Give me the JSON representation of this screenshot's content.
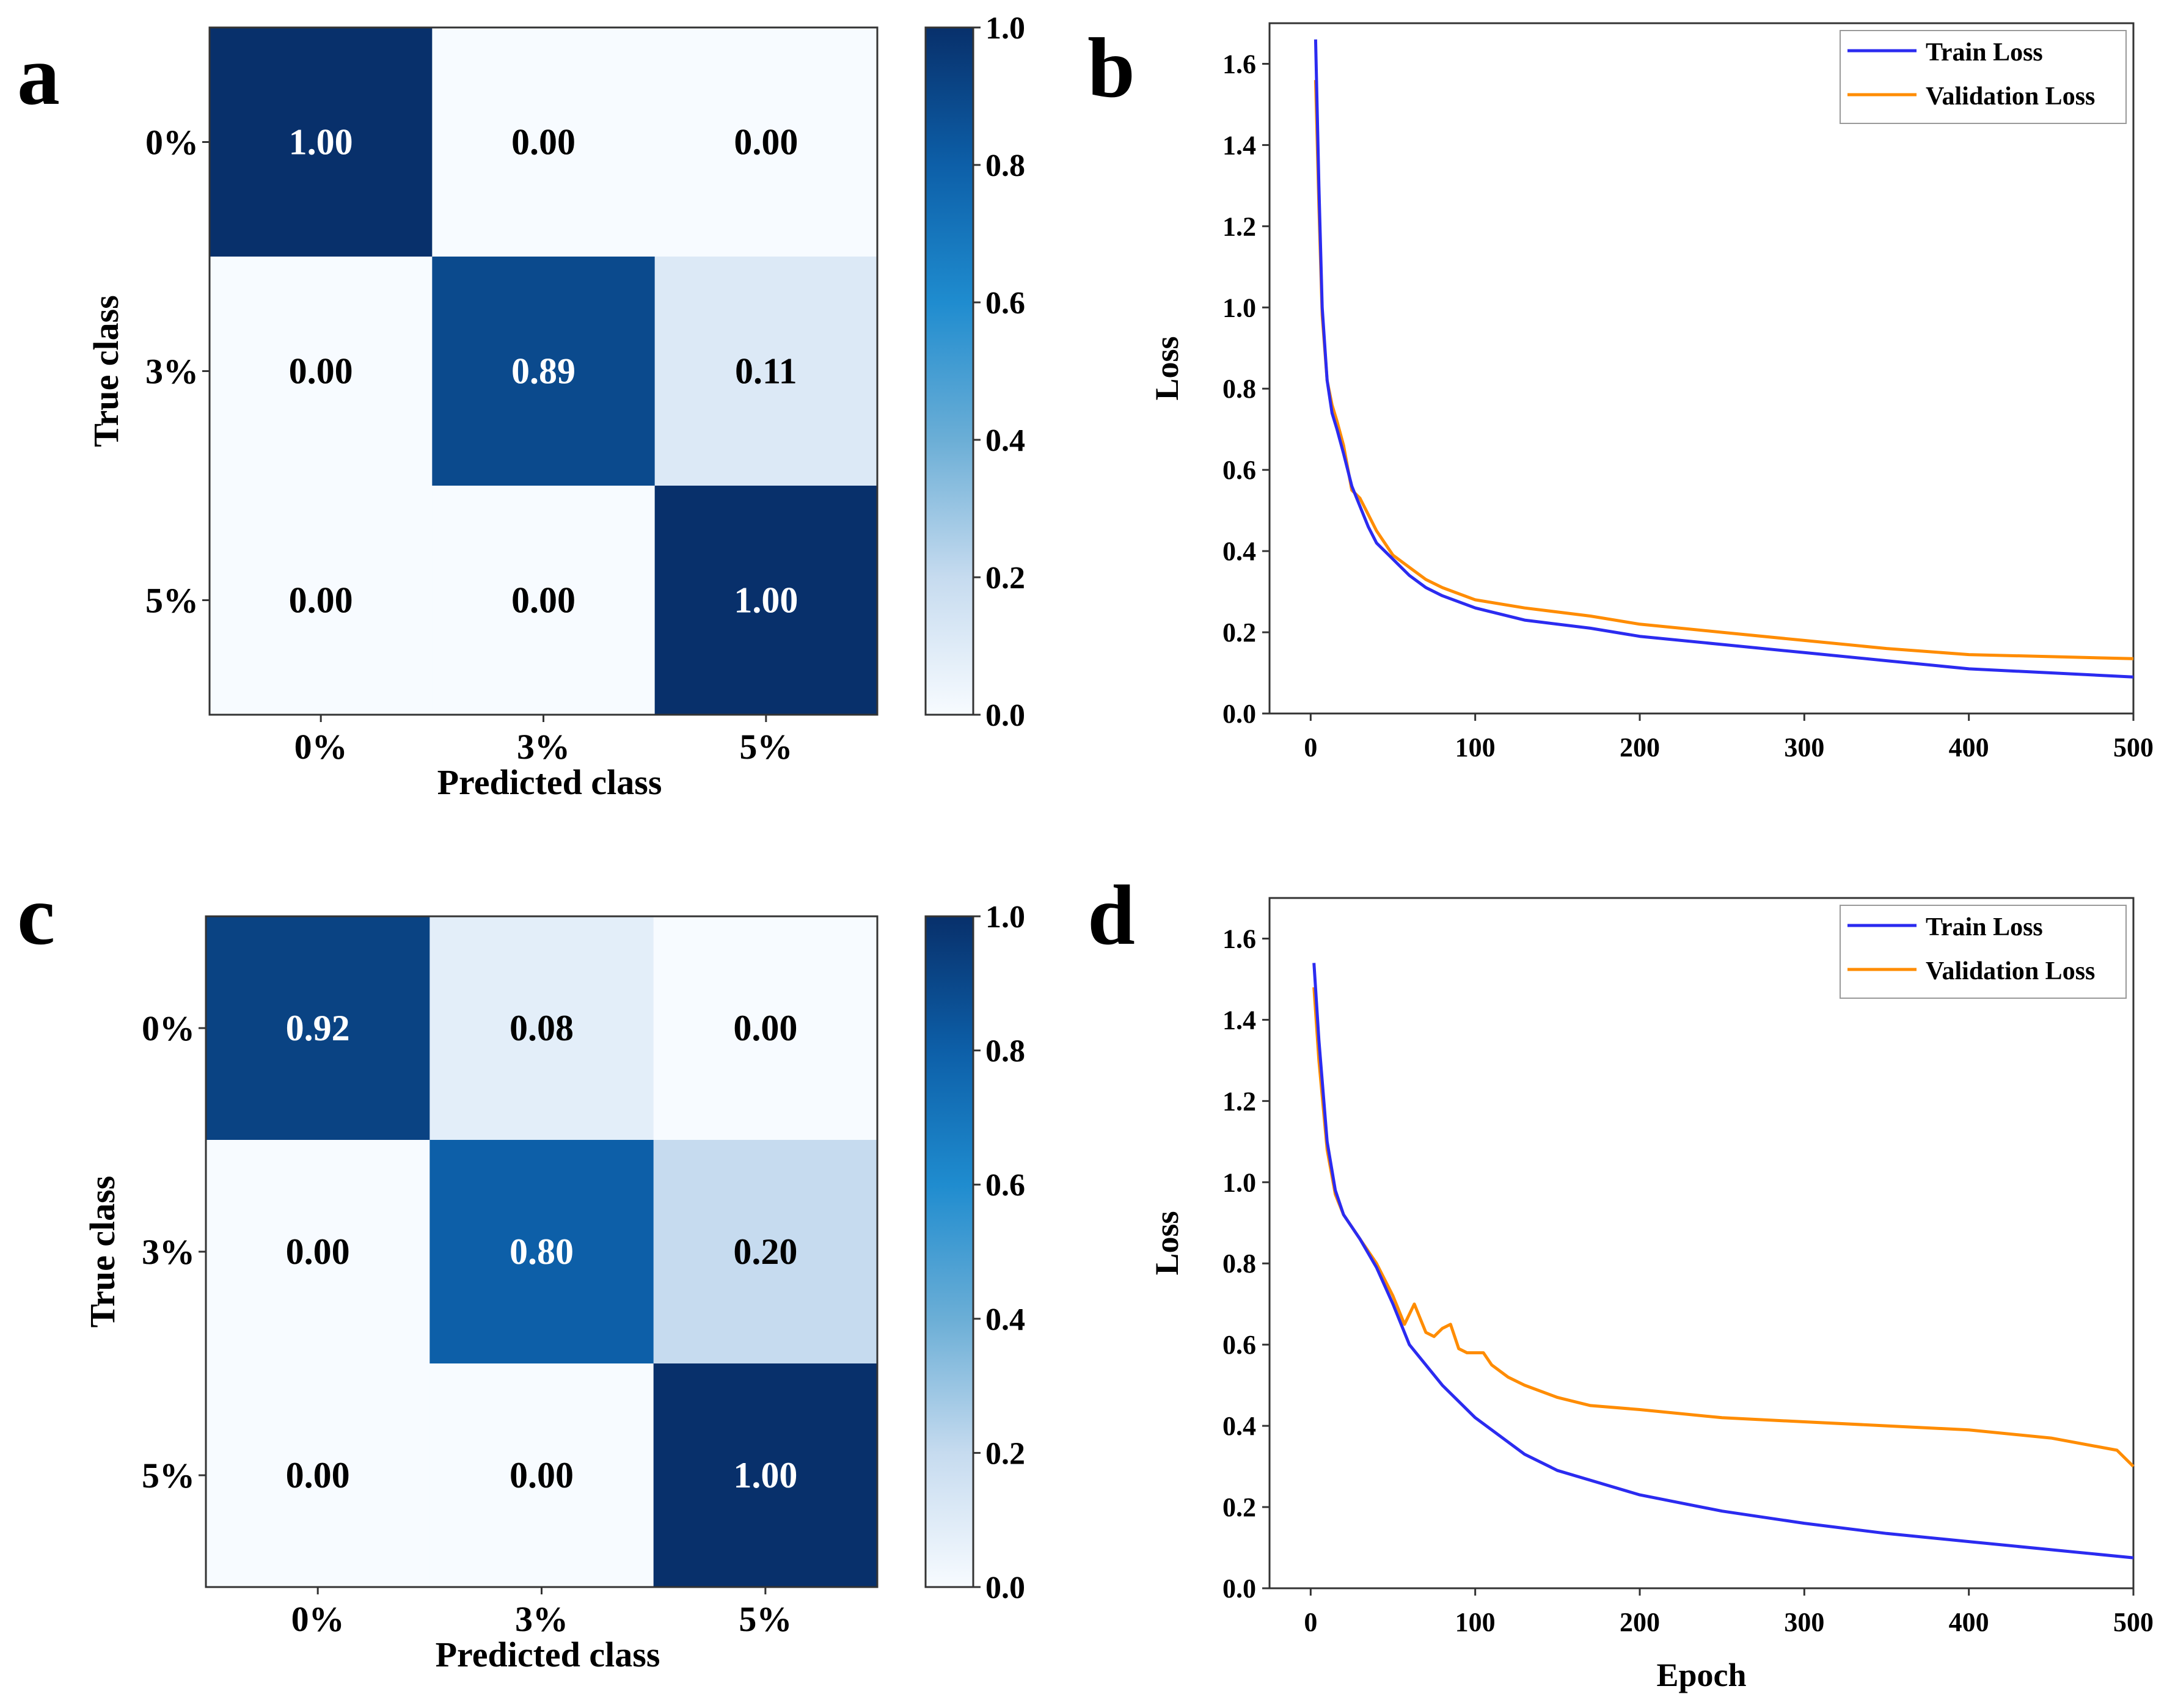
{
  "panel_letters": [
    "a",
    "b",
    "c",
    "d"
  ],
  "chart_data": [
    {
      "panel": "a",
      "type": "heatmap",
      "xlabel": "Predicted class",
      "ylabel": "True class",
      "x_categories": [
        "0%",
        "3%",
        "5%"
      ],
      "y_categories": [
        "0%",
        "3%",
        "5%"
      ],
      "values": [
        [
          1.0,
          0.0,
          0.0
        ],
        [
          0.0,
          0.89,
          0.11
        ],
        [
          0.0,
          0.0,
          1.0
        ]
      ],
      "cell_labels": [
        [
          "1.00",
          "0.00",
          "0.00"
        ],
        [
          "0.00",
          "0.89",
          "0.11"
        ],
        [
          "0.00",
          "0.00",
          "1.00"
        ]
      ],
      "colorbar": {
        "range": [
          0.0,
          1.0
        ],
        "ticks": [
          "0.0",
          "0.2",
          "0.4",
          "0.6",
          "0.8",
          "1.0"
        ],
        "colormap": "Blues"
      }
    },
    {
      "panel": "b",
      "type": "line",
      "xlabel": "",
      "ylabel": "Loss",
      "xlim": [
        -25,
        500
      ],
      "ylim": [
        0.0,
        1.7
      ],
      "xticks": [
        "0",
        "100",
        "200",
        "300",
        "400",
        "500"
      ],
      "yticks": [
        "0.0",
        "0.2",
        "0.4",
        "0.6",
        "0.8",
        "1.0",
        "1.2",
        "1.4",
        "1.6"
      ],
      "legend": "top-right",
      "series": [
        {
          "name": "Train Loss",
          "color": "#2b2bf0",
          "x": [
            3,
            5,
            7,
            10,
            13,
            16,
            20,
            25,
            30,
            35,
            40,
            50,
            60,
            70,
            80,
            100,
            130,
            170,
            200,
            250,
            300,
            350,
            400,
            450,
            500
          ],
          "y": [
            1.66,
            1.3,
            1.0,
            0.82,
            0.74,
            0.7,
            0.64,
            0.56,
            0.51,
            0.46,
            0.42,
            0.38,
            0.34,
            0.31,
            0.29,
            0.26,
            0.23,
            0.21,
            0.19,
            0.17,
            0.15,
            0.13,
            0.11,
            0.1,
            0.09
          ]
        },
        {
          "name": "Validation Loss",
          "color": "#ff8c00",
          "x": [
            3,
            5,
            7,
            10,
            13,
            16,
            20,
            25,
            30,
            35,
            40,
            50,
            60,
            70,
            80,
            100,
            130,
            170,
            200,
            250,
            300,
            350,
            400,
            450,
            500
          ],
          "y": [
            1.56,
            1.25,
            0.98,
            0.82,
            0.76,
            0.72,
            0.66,
            0.55,
            0.53,
            0.49,
            0.45,
            0.39,
            0.36,
            0.33,
            0.31,
            0.28,
            0.26,
            0.24,
            0.22,
            0.2,
            0.18,
            0.16,
            0.145,
            0.14,
            0.135
          ]
        }
      ]
    },
    {
      "panel": "c",
      "type": "heatmap",
      "xlabel": "Predicted class",
      "ylabel": "True class",
      "x_categories": [
        "0%",
        "3%",
        "5%"
      ],
      "y_categories": [
        "0%",
        "3%",
        "5%"
      ],
      "values": [
        [
          0.92,
          0.08,
          0.0
        ],
        [
          0.0,
          0.8,
          0.2
        ],
        [
          0.0,
          0.0,
          1.0
        ]
      ],
      "cell_labels": [
        [
          "0.92",
          "0.08",
          "0.00"
        ],
        [
          "0.00",
          "0.80",
          "0.20"
        ],
        [
          "0.00",
          "0.00",
          "1.00"
        ]
      ],
      "colorbar": {
        "range": [
          0.0,
          1.0
        ],
        "ticks": [
          "0.0",
          "0.2",
          "0.4",
          "0.6",
          "0.8",
          "1.0"
        ],
        "colormap": "Blues"
      }
    },
    {
      "panel": "d",
      "type": "line",
      "xlabel": "Epoch",
      "ylabel": "Loss",
      "xlim": [
        -25,
        500
      ],
      "ylim": [
        0.0,
        1.7
      ],
      "xticks": [
        "0",
        "100",
        "200",
        "300",
        "400",
        "500"
      ],
      "yticks": [
        "0.0",
        "0.2",
        "0.4",
        "0.6",
        "0.8",
        "1.0",
        "1.2",
        "1.4",
        "1.6"
      ],
      "legend": "top-right",
      "series": [
        {
          "name": "Train Loss",
          "color": "#2b2bf0",
          "x": [
            2,
            5,
            10,
            15,
            20,
            30,
            40,
            50,
            60,
            70,
            80,
            100,
            130,
            150,
            200,
            250,
            300,
            350,
            400,
            450,
            500
          ],
          "y": [
            1.54,
            1.35,
            1.1,
            0.98,
            0.92,
            0.86,
            0.79,
            0.7,
            0.6,
            0.55,
            0.5,
            0.42,
            0.33,
            0.29,
            0.23,
            0.19,
            0.16,
            0.135,
            0.115,
            0.095,
            0.075
          ]
        },
        {
          "name": "Validation Loss",
          "color": "#ff8c00",
          "x": [
            2,
            5,
            10,
            15,
            20,
            30,
            40,
            50,
            57,
            63,
            70,
            75,
            80,
            85,
            90,
            95,
            105,
            110,
            120,
            130,
            150,
            170,
            200,
            250,
            300,
            350,
            400,
            450,
            490,
            500
          ],
          "y": [
            1.48,
            1.3,
            1.08,
            0.97,
            0.92,
            0.86,
            0.8,
            0.72,
            0.65,
            0.7,
            0.63,
            0.62,
            0.64,
            0.65,
            0.59,
            0.58,
            0.58,
            0.55,
            0.52,
            0.5,
            0.47,
            0.45,
            0.44,
            0.42,
            0.41,
            0.4,
            0.39,
            0.37,
            0.34,
            0.3
          ]
        }
      ]
    }
  ]
}
